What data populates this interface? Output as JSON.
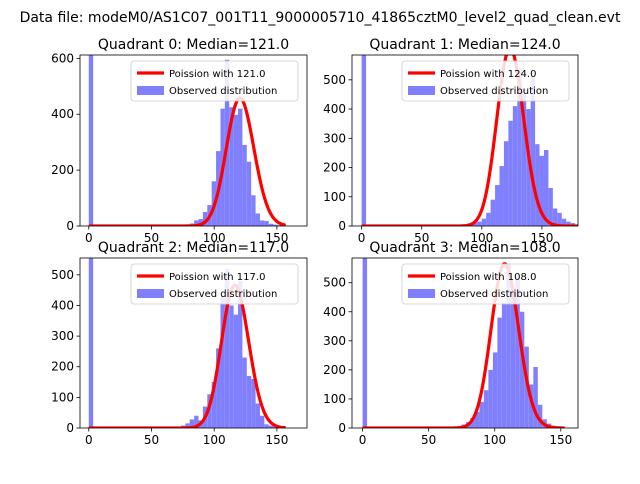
{
  "suptitle": "Data file: modeM0/AS1C07_001T11_9000005710_41865cztM0_level2_quad_clean.evt",
  "colors": {
    "observed": "#8080ff",
    "poisson": "#ff0000",
    "background": "#ffffff"
  },
  "chart_data": [
    {
      "type": "bar",
      "title": "Quadrant 0: Median=121.0",
      "xlabel": "",
      "ylabel": "",
      "xlim": [
        -7,
        174
      ],
      "ylim": [
        0,
        612
      ],
      "xticks": [
        0,
        50,
        100,
        150
      ],
      "yticks": [
        0,
        200,
        400,
        600
      ],
      "legend_position": "upper-right",
      "series": [
        {
          "name": "Poission with 121.0",
          "type": "line",
          "mean": 121.0
        },
        {
          "name": "Observed distribution",
          "type": "histogram",
          "bin_width": 3.5,
          "bin_start": 0,
          "values": [
            612,
            0,
            0,
            0,
            0,
            0,
            0,
            0,
            0,
            0,
            0,
            0,
            0,
            0,
            0,
            0,
            0,
            0,
            0,
            0,
            0,
            5,
            6,
            9,
            20,
            25,
            50,
            75,
            160,
            268,
            420,
            595,
            425,
            398,
            420,
            290,
            230,
            110,
            45,
            20,
            18,
            8,
            5,
            3,
            0
          ]
        }
      ]
    },
    {
      "type": "bar",
      "title": "Quadrant 1: Median=124.0",
      "xlabel": "",
      "ylabel": "",
      "xlim": [
        -8,
        180
      ],
      "ylim": [
        0,
        585
      ],
      "xticks": [
        0,
        50,
        100,
        150
      ],
      "yticks": [
        0,
        100,
        200,
        300,
        400,
        500
      ],
      "legend_position": "upper-right",
      "series": [
        {
          "name": "Poission with 124.0",
          "type": "line",
          "mean": 124.0
        },
        {
          "name": "Observed distribution",
          "type": "histogram",
          "bin_width": 3.7,
          "bin_start": 0,
          "values": [
            585,
            0,
            0,
            0,
            0,
            0,
            0,
            0,
            0,
            0,
            0,
            0,
            0,
            0,
            0,
            0,
            0,
            0,
            0,
            0,
            0,
            0,
            0,
            0,
            8,
            12,
            15,
            25,
            45,
            90,
            140,
            205,
            290,
            360,
            410,
            540,
            470,
            400,
            510,
            280,
            240,
            260,
            130,
            60,
            45,
            25,
            15,
            10,
            5
          ]
        }
      ]
    },
    {
      "type": "bar",
      "title": "Quadrant 2: Median=117.0",
      "xlabel": "",
      "ylabel": "",
      "xlim": [
        -7,
        174
      ],
      "ylim": [
        0,
        555
      ],
      "xticks": [
        0,
        50,
        100,
        150
      ],
      "yticks": [
        0,
        100,
        200,
        300,
        400,
        500
      ],
      "legend_position": "upper-right",
      "series": [
        {
          "name": "Poission with 117.0",
          "type": "line",
          "mean": 117.0
        },
        {
          "name": "Observed distribution",
          "type": "histogram",
          "bin_width": 3.5,
          "bin_start": 0,
          "values": [
            555,
            0,
            0,
            0,
            0,
            0,
            0,
            0,
            0,
            0,
            0,
            0,
            0,
            0,
            0,
            0,
            0,
            0,
            0,
            0,
            0,
            8,
            15,
            28,
            40,
            25,
            70,
            110,
            150,
            260,
            430,
            520,
            400,
            370,
            480,
            230,
            170,
            160,
            80,
            40,
            12,
            8,
            5,
            2,
            0
          ]
        }
      ]
    },
    {
      "type": "bar",
      "title": "Quadrant 3: Median=108.0",
      "xlabel": "",
      "ylabel": "",
      "xlim": [
        -8,
        163
      ],
      "ylim": [
        0,
        585
      ],
      "xticks": [
        0,
        50,
        100,
        150
      ],
      "yticks": [
        0,
        100,
        200,
        300,
        400,
        500
      ],
      "legend_position": "upper-right",
      "series": [
        {
          "name": "Poission with 108.0",
          "type": "line",
          "mean": 108.0
        },
        {
          "name": "Observed distribution",
          "type": "histogram",
          "bin_width": 3.4,
          "bin_start": 0,
          "values": [
            585,
            0,
            0,
            0,
            0,
            0,
            0,
            0,
            0,
            0,
            0,
            0,
            0,
            0,
            0,
            0,
            0,
            0,
            0,
            0,
            0,
            5,
            12,
            20,
            35,
            55,
            90,
            130,
            200,
            260,
            380,
            430,
            565,
            460,
            510,
            400,
            280,
            150,
            210,
            80,
            30,
            15,
            8,
            4,
            2
          ]
        }
      ]
    }
  ]
}
